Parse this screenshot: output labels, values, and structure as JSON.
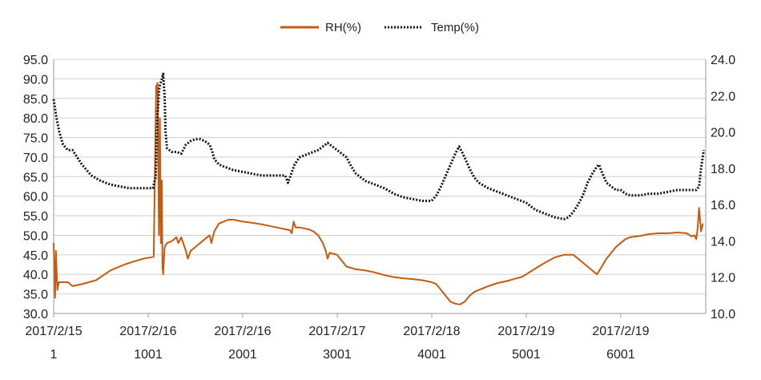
{
  "chart_data": {
    "type": "line",
    "title": "",
    "xlabel": "",
    "ylabel": "",
    "y2label": "",
    "grid": "horizontal",
    "legend_position": "top-center",
    "x_range": [
      1,
      6900
    ],
    "ylim": [
      30.0,
      95.0
    ],
    "y2lim": [
      10.0,
      24.0
    ],
    "y_ticks": [
      "30.0",
      "35.0",
      "40.0",
      "45.0",
      "50.0",
      "55.0",
      "60.0",
      "65.0",
      "70.0",
      "75.0",
      "80.0",
      "85.0",
      "90.0",
      "95.0"
    ],
    "y2_ticks": [
      "10.0",
      "12.0",
      "14.0",
      "16.0",
      "18.0",
      "20.0",
      "22.0",
      "24.0"
    ],
    "x_ticks": [
      {
        "x": 1,
        "date": "2017/2/15",
        "index": "1"
      },
      {
        "x": 1001,
        "date": "2017/2/16",
        "index": "1001"
      },
      {
        "x": 2001,
        "date": "2017/2/16",
        "index": "2001"
      },
      {
        "x": 3001,
        "date": "2017/2/17",
        "index": "3001"
      },
      {
        "x": 4001,
        "date": "2017/2/18",
        "index": "4001"
      },
      {
        "x": 5001,
        "date": "2017/2/19",
        "index": "5001"
      },
      {
        "x": 6001,
        "date": "2017/2/19",
        "index": "6001"
      }
    ],
    "series": [
      {
        "name": "RH(%)",
        "axis": "left",
        "color": "#c55a11",
        "style": "solid",
        "points": [
          [
            1,
            48
          ],
          [
            15,
            34
          ],
          [
            25,
            46
          ],
          [
            40,
            36
          ],
          [
            55,
            38
          ],
          [
            80,
            38
          ],
          [
            150,
            38
          ],
          [
            200,
            37
          ],
          [
            300,
            37.5
          ],
          [
            450,
            38.5
          ],
          [
            600,
            41
          ],
          [
            750,
            42.5
          ],
          [
            850,
            43.3
          ],
          [
            950,
            44
          ],
          [
            1060,
            44.5
          ],
          [
            1085,
            88
          ],
          [
            1100,
            89
          ],
          [
            1115,
            50
          ],
          [
            1125,
            80
          ],
          [
            1135,
            48
          ],
          [
            1145,
            64
          ],
          [
            1152,
            42
          ],
          [
            1160,
            40
          ],
          [
            1175,
            47
          ],
          [
            1200,
            48
          ],
          [
            1250,
            48.5
          ],
          [
            1300,
            49.5
          ],
          [
            1320,
            48
          ],
          [
            1350,
            49.5
          ],
          [
            1400,
            46
          ],
          [
            1420,
            44
          ],
          [
            1450,
            46
          ],
          [
            1500,
            47
          ],
          [
            1550,
            48
          ],
          [
            1600,
            49
          ],
          [
            1650,
            50
          ],
          [
            1670,
            48
          ],
          [
            1700,
            51
          ],
          [
            1750,
            53
          ],
          [
            1800,
            53.5
          ],
          [
            1850,
            54
          ],
          [
            1900,
            54
          ],
          [
            2000,
            53.5
          ],
          [
            2100,
            53.2
          ],
          [
            2200,
            52.8
          ],
          [
            2300,
            52.3
          ],
          [
            2400,
            51.8
          ],
          [
            2500,
            51.3
          ],
          [
            2520,
            50.5
          ],
          [
            2540,
            53.5
          ],
          [
            2560,
            52
          ],
          [
            2600,
            52
          ],
          [
            2700,
            51.5
          ],
          [
            2750,
            51
          ],
          [
            2800,
            50
          ],
          [
            2850,
            48
          ],
          [
            2880,
            46
          ],
          [
            2900,
            44
          ],
          [
            2920,
            45.5
          ],
          [
            3000,
            45
          ],
          [
            3050,
            43.5
          ],
          [
            3100,
            42
          ],
          [
            3200,
            41.3
          ],
          [
            3300,
            41
          ],
          [
            3400,
            40.5
          ],
          [
            3500,
            39.8
          ],
          [
            3600,
            39.3
          ],
          [
            3700,
            39
          ],
          [
            3800,
            38.8
          ],
          [
            3900,
            38.5
          ],
          [
            4000,
            38
          ],
          [
            4050,
            37.5
          ],
          [
            4100,
            36
          ],
          [
            4150,
            34.5
          ],
          [
            4200,
            33
          ],
          [
            4250,
            32.5
          ],
          [
            4300,
            32.3
          ],
          [
            4350,
            33
          ],
          [
            4400,
            34.5
          ],
          [
            4450,
            35.5
          ],
          [
            4500,
            36
          ],
          [
            4600,
            37
          ],
          [
            4700,
            37.8
          ],
          [
            4800,
            38.3
          ],
          [
            4900,
            39
          ],
          [
            4950,
            39.3
          ],
          [
            5000,
            40
          ],
          [
            5100,
            41.5
          ],
          [
            5200,
            43
          ],
          [
            5300,
            44.3
          ],
          [
            5400,
            45
          ],
          [
            5450,
            45
          ],
          [
            5500,
            45
          ],
          [
            5550,
            44
          ],
          [
            5600,
            43
          ],
          [
            5650,
            42
          ],
          [
            5700,
            41
          ],
          [
            5750,
            40
          ],
          [
            5800,
            42
          ],
          [
            5850,
            44
          ],
          [
            5900,
            45.5
          ],
          [
            5950,
            47
          ],
          [
            6000,
            48
          ],
          [
            6050,
            49
          ],
          [
            6100,
            49.5
          ],
          [
            6200,
            49.8
          ],
          [
            6300,
            50.3
          ],
          [
            6400,
            50.5
          ],
          [
            6500,
            50.5
          ],
          [
            6600,
            50.7
          ],
          [
            6700,
            50.5
          ],
          [
            6750,
            49.7
          ],
          [
            6780,
            50
          ],
          [
            6800,
            49
          ],
          [
            6815,
            52
          ],
          [
            6830,
            57
          ],
          [
            6850,
            51
          ],
          [
            6870,
            53
          ]
        ]
      },
      {
        "name": "Temp(%)",
        "axis": "right",
        "color": "#111111",
        "style": "dotted",
        "points": [
          [
            1,
            21.8
          ],
          [
            30,
            20.8
          ],
          [
            60,
            20
          ],
          [
            100,
            19.3
          ],
          [
            150,
            19
          ],
          [
            200,
            19
          ],
          [
            250,
            18.6
          ],
          [
            300,
            18.2
          ],
          [
            400,
            17.6
          ],
          [
            500,
            17.3
          ],
          [
            600,
            17.1
          ],
          [
            700,
            17
          ],
          [
            800,
            16.9
          ],
          [
            900,
            16.9
          ],
          [
            1000,
            16.9
          ],
          [
            1050,
            16.9
          ],
          [
            1080,
            17.5
          ],
          [
            1100,
            21
          ],
          [
            1120,
            22.5
          ],
          [
            1140,
            22.8
          ],
          [
            1160,
            23.2
          ],
          [
            1175,
            22
          ],
          [
            1185,
            20
          ],
          [
            1200,
            19.1
          ],
          [
            1250,
            18.9
          ],
          [
            1300,
            18.9
          ],
          [
            1350,
            18.8
          ],
          [
            1400,
            19.3
          ],
          [
            1450,
            19.5
          ],
          [
            1500,
            19.6
          ],
          [
            1550,
            19.6
          ],
          [
            1600,
            19.5
          ],
          [
            1650,
            19.3
          ],
          [
            1680,
            18.9
          ],
          [
            1700,
            18.5
          ],
          [
            1750,
            18.2
          ],
          [
            1800,
            18.1
          ],
          [
            1850,
            18
          ],
          [
            1900,
            17.9
          ],
          [
            2000,
            17.8
          ],
          [
            2100,
            17.7
          ],
          [
            2200,
            17.6
          ],
          [
            2300,
            17.6
          ],
          [
            2450,
            17.6
          ],
          [
            2480,
            17.2
          ],
          [
            2500,
            17.5
          ],
          [
            2550,
            18.2
          ],
          [
            2600,
            18.6
          ],
          [
            2700,
            18.8
          ],
          [
            2800,
            19
          ],
          [
            2850,
            19.2
          ],
          [
            2900,
            19.4
          ],
          [
            2950,
            19.2
          ],
          [
            3000,
            19
          ],
          [
            3100,
            18.6
          ],
          [
            3150,
            18.1
          ],
          [
            3200,
            17.7
          ],
          [
            3300,
            17.3
          ],
          [
            3400,
            17.1
          ],
          [
            3500,
            16.9
          ],
          [
            3600,
            16.6
          ],
          [
            3700,
            16.4
          ],
          [
            3800,
            16.3
          ],
          [
            3900,
            16.2
          ],
          [
            4000,
            16.2
          ],
          [
            4050,
            16.5
          ],
          [
            4100,
            17
          ],
          [
            4150,
            17.6
          ],
          [
            4200,
            18.2
          ],
          [
            4250,
            18.8
          ],
          [
            4290,
            19.2
          ],
          [
            4330,
            18.8
          ],
          [
            4400,
            18
          ],
          [
            4450,
            17.5
          ],
          [
            4500,
            17.2
          ],
          [
            4600,
            16.9
          ],
          [
            4700,
            16.7
          ],
          [
            4800,
            16.5
          ],
          [
            4900,
            16.3
          ],
          [
            5000,
            16.1
          ],
          [
            5100,
            15.7
          ],
          [
            5200,
            15.5
          ],
          [
            5300,
            15.3
          ],
          [
            5400,
            15.2
          ],
          [
            5450,
            15.3
          ],
          [
            5500,
            15.6
          ],
          [
            5550,
            16
          ],
          [
            5600,
            16.5
          ],
          [
            5650,
            17.2
          ],
          [
            5700,
            17.7
          ],
          [
            5750,
            18.1
          ],
          [
            5770,
            18.2
          ],
          [
            5800,
            17.8
          ],
          [
            5850,
            17.2
          ],
          [
            5900,
            17
          ],
          [
            5950,
            16.8
          ],
          [
            6000,
            16.8
          ],
          [
            6050,
            16.6
          ],
          [
            6100,
            16.5
          ],
          [
            6200,
            16.5
          ],
          [
            6300,
            16.6
          ],
          [
            6400,
            16.6
          ],
          [
            6500,
            16.7
          ],
          [
            6600,
            16.8
          ],
          [
            6700,
            16.8
          ],
          [
            6800,
            16.8
          ],
          [
            6830,
            17
          ],
          [
            6850,
            18
          ],
          [
            6880,
            19
          ]
        ]
      }
    ]
  }
}
